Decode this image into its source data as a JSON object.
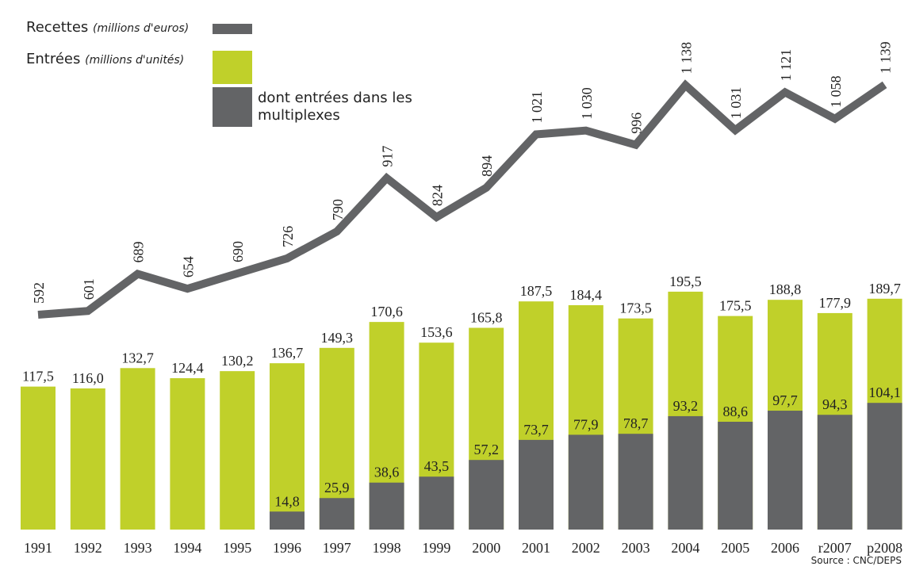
{
  "chart_data": {
    "type": "bar",
    "categories": [
      "1991",
      "1992",
      "1993",
      "1994",
      "1995",
      "1996",
      "1997",
      "1998",
      "1999",
      "2000",
      "2001",
      "2002",
      "2003",
      "2004",
      "2005",
      "2006",
      "r2007",
      "p2008"
    ],
    "ylim": [
      0,
      400
    ],
    "y2lim": [
      0,
      1250
    ],
    "series": [
      {
        "name": "Entrées",
        "unit": "(millions d'unités)",
        "type": "bar",
        "color": "#c0d02a",
        "values": [
          117.5,
          116.0,
          132.7,
          124.4,
          130.2,
          136.7,
          149.3,
          170.6,
          153.6,
          165.8,
          187.5,
          184.4,
          173.5,
          195.5,
          175.5,
          188.8,
          177.9,
          189.7
        ],
        "value_labels": [
          "117,5",
          "116,0",
          "132,7",
          "124,4",
          "130,2",
          "136,7",
          "149,3",
          "170,6",
          "153,6",
          "165,8",
          "187,5",
          "184,4",
          "173,5",
          "195,5",
          "175,5",
          "188,8",
          "177,9",
          "189,7"
        ]
      },
      {
        "name": "dont entrées dans les multiplexes",
        "type": "bar",
        "color": "#636466",
        "values": [
          null,
          null,
          null,
          null,
          null,
          14.8,
          25.9,
          38.6,
          43.5,
          57.2,
          73.7,
          77.9,
          78.7,
          93.2,
          88.6,
          97.7,
          94.3,
          104.1
        ],
        "value_labels": [
          null,
          null,
          null,
          null,
          null,
          "14,8",
          "25,9",
          "38,6",
          "43,5",
          "57,2",
          "73,7",
          "77,9",
          "78,7",
          "93,2",
          "88,6",
          "97,7",
          "94,3",
          "104,1"
        ]
      },
      {
        "name": "Recettes",
        "unit": "(millions d'euros)",
        "type": "line",
        "axis": "y2",
        "color": "#636466",
        "values": [
          592,
          601,
          689,
          654,
          690,
          726,
          790,
          917,
          824,
          894,
          1021,
          1030,
          996,
          1138,
          1031,
          1121,
          1058,
          1139
        ],
        "value_labels": [
          "592",
          "601",
          "689",
          "654",
          "690",
          "726",
          "790",
          "917",
          "824",
          "894",
          "1 021",
          "1 030",
          "996",
          "1 138",
          "1 031",
          "1 121",
          "1 058",
          "1 139"
        ]
      }
    ],
    "source": "Source : CNC/DEPS"
  }
}
